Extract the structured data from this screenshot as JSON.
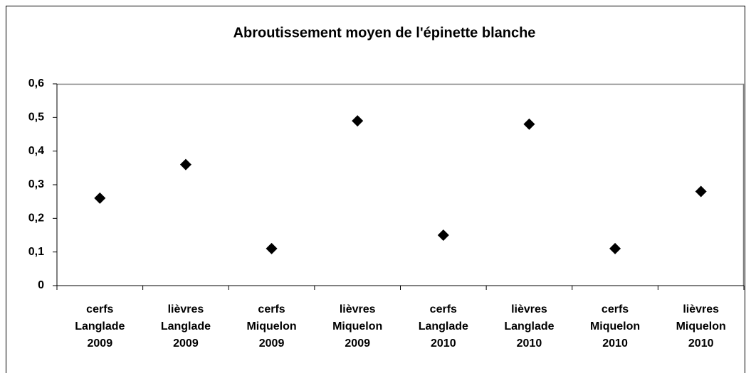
{
  "chart_data": {
    "type": "scatter",
    "title": "Abroutissement moyen de l'épinette blanche",
    "categories": [
      "cerfs Langlade 2009",
      "lièvres Langlade 2009",
      "cerfs Miquelon 2009",
      "lièvres Miquelon 2009",
      "cerfs Langlade 2010",
      "lièvres Langlade 2010",
      "cerfs Miquelon 2010",
      "lièvres Miquelon 2010"
    ],
    "values": [
      0.26,
      0.36,
      0.11,
      0.49,
      0.15,
      0.48,
      0.11,
      0.28
    ],
    "color": "#000000",
    "marker": "diamond",
    "ylim": [
      0,
      0.6
    ],
    "yticks": [
      0,
      {
        "value": 0.1,
        "label": "0,1"
      },
      {
        "value": 0.2,
        "label": "0,2"
      },
      {
        "value": 0.3,
        "label": "0,3"
      },
      {
        "value": 0.4,
        "label": "0,4"
      },
      {
        "value": 0.5,
        "label": "0,5"
      },
      {
        "value": 0.6,
        "label": "0,6"
      }
    ],
    "grid": false
  }
}
